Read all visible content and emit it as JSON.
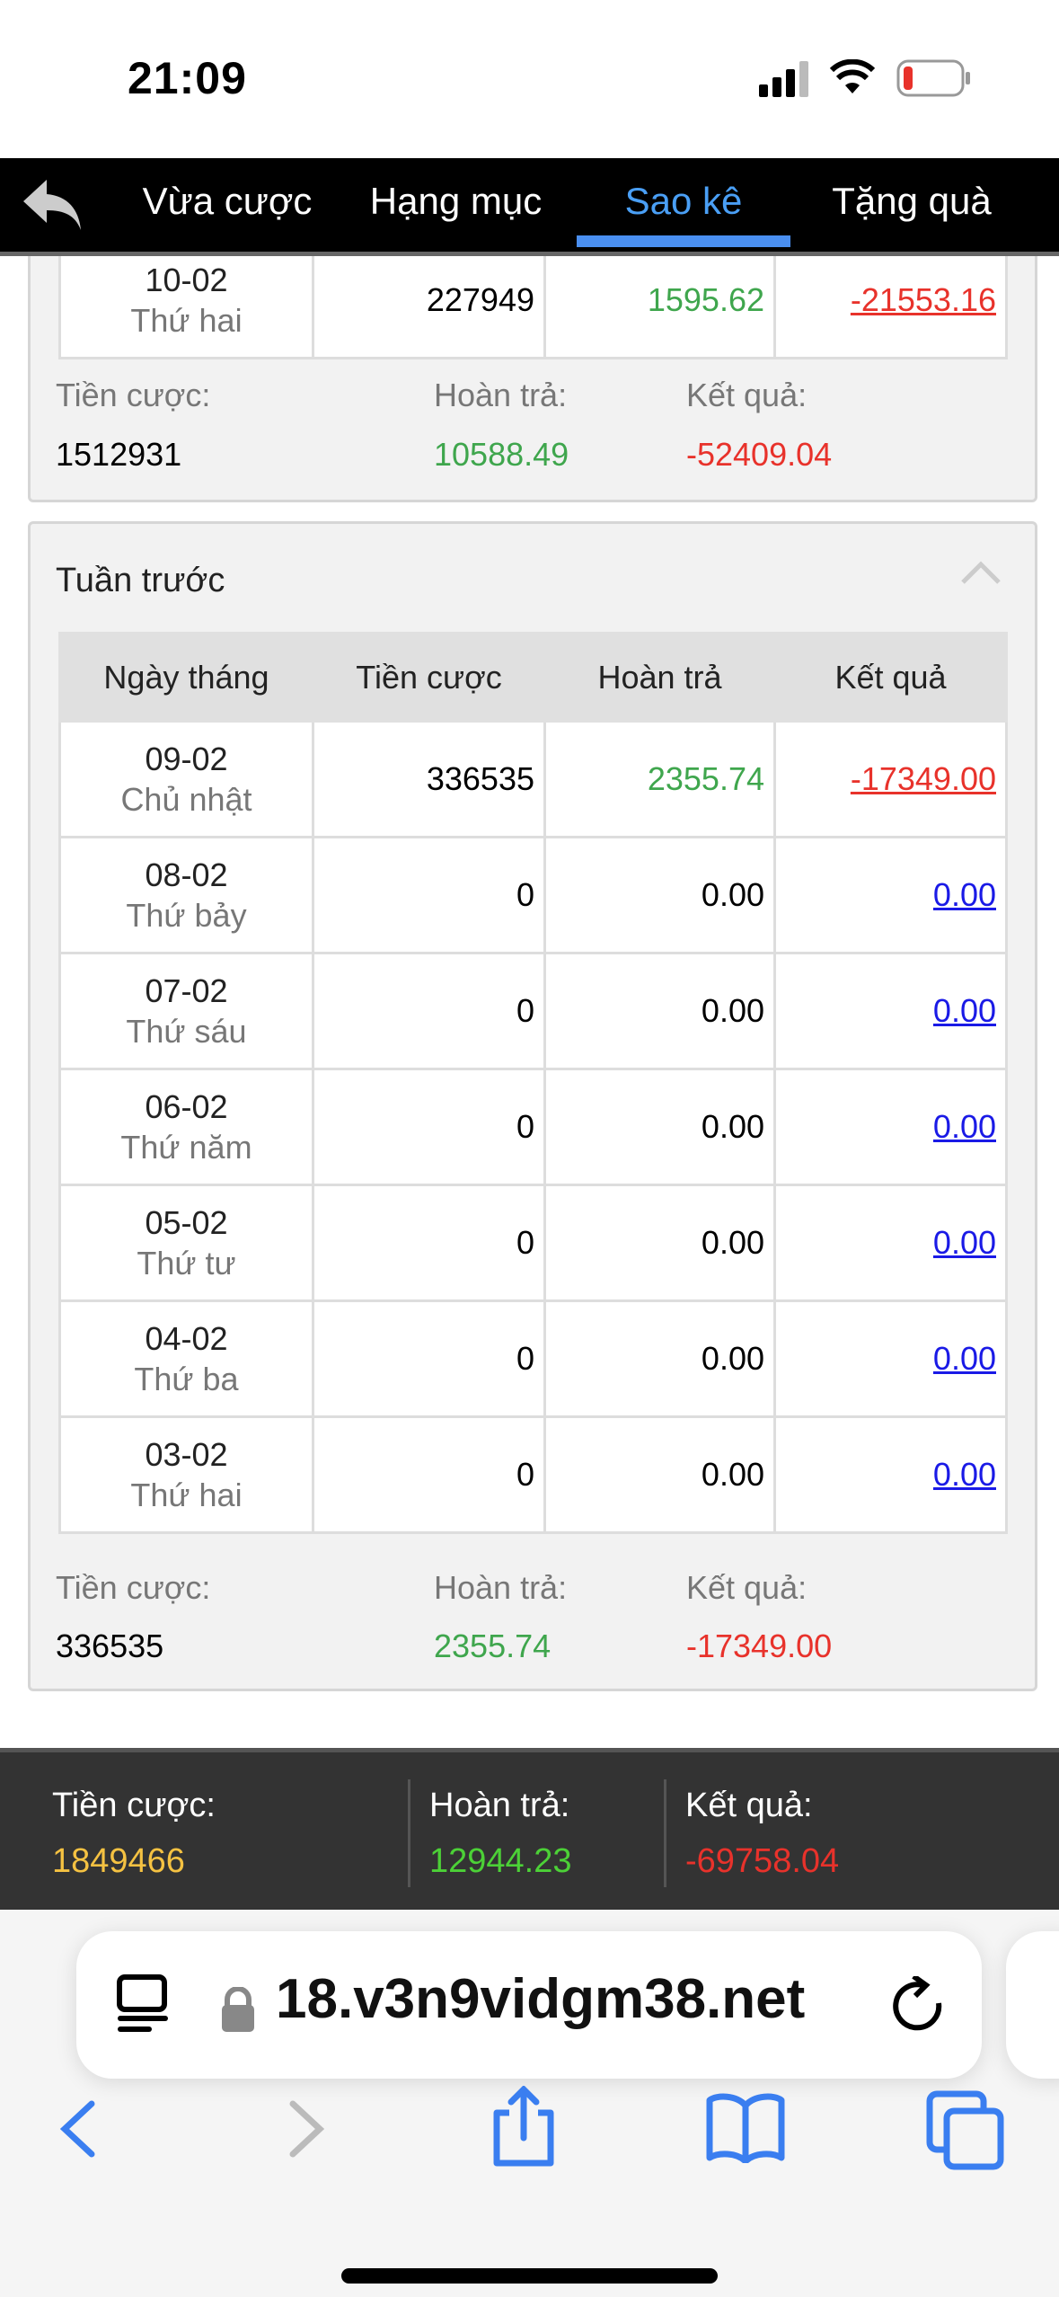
{
  "status_bar": {
    "time": "21:09",
    "icons": [
      "signal-icon",
      "wifi-icon",
      "battery-low-icon"
    ]
  },
  "nav": {
    "back_icon": "back-arrow-icon",
    "tabs": [
      {
        "label": "Vừa cược"
      },
      {
        "label": "Hạng mục"
      },
      {
        "label": "Sao kê",
        "active": true
      },
      {
        "label": "Tặng quà"
      }
    ]
  },
  "this_week": {
    "rows": [
      {
        "date": "10-02",
        "weekday": "Thứ hai",
        "bet": "227949",
        "rebate": "1595.62",
        "result": "-21553.16"
      }
    ],
    "summary": {
      "bet_label": "Tiền cược:",
      "bet": "1512931",
      "rebate_label": "Hoàn trả:",
      "rebate": "10588.49",
      "result_label": "Kết quả:",
      "result": "-52409.04"
    }
  },
  "last_week": {
    "title": "Tuần trước",
    "headers": [
      "Ngày tháng",
      "Tiền cược",
      "Hoàn trả",
      "Kết quả"
    ],
    "rows": [
      {
        "date": "09-02",
        "weekday": "Chủ nhật",
        "bet": "336535",
        "rebate": "2355.74",
        "result": "-17349.00"
      },
      {
        "date": "08-02",
        "weekday": "Thứ bảy",
        "bet": "0",
        "rebate": "0.00",
        "result": "0.00"
      },
      {
        "date": "07-02",
        "weekday": "Thứ sáu",
        "bet": "0",
        "rebate": "0.00",
        "result": "0.00"
      },
      {
        "date": "06-02",
        "weekday": "Thứ năm",
        "bet": "0",
        "rebate": "0.00",
        "result": "0.00"
      },
      {
        "date": "05-02",
        "weekday": "Thứ tư",
        "bet": "0",
        "rebate": "0.00",
        "result": "0.00"
      },
      {
        "date": "04-02",
        "weekday": "Thứ ba",
        "bet": "0",
        "rebate": "0.00",
        "result": "0.00"
      },
      {
        "date": "03-02",
        "weekday": "Thứ hai",
        "bet": "0",
        "rebate": "0.00",
        "result": "0.00"
      }
    ],
    "summary": {
      "bet_label": "Tiền cược:",
      "bet": "336535",
      "rebate_label": "Hoàn trả:",
      "rebate": "2355.74",
      "result_label": "Kết quả:",
      "result": "-17349.00"
    }
  },
  "total": {
    "bet_label": "Tiền cược:",
    "bet": "1849466",
    "rebate_label": "Hoàn trả:",
    "rebate": "12944.23",
    "result_label": "Kết quả:",
    "result": "-69758.04"
  },
  "browser": {
    "url": "18.v3n9vidgm38.net"
  },
  "colors": {
    "positive": "#3fa64d",
    "negative": "#e8322b",
    "zero_link": "#1a1ae6",
    "active_tab": "#4a9ff5",
    "total_bet": "#f5c242",
    "total_rebate": "#4cd137"
  }
}
